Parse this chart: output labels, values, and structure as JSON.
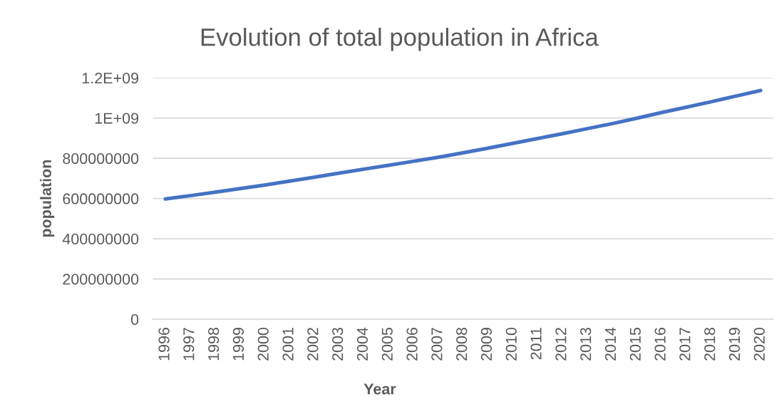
{
  "chart_data": {
    "type": "line",
    "title": "Evolution of total population in Africa",
    "xlabel": "Year",
    "ylabel": "population",
    "categories": [
      "1996",
      "1997",
      "1998",
      "1999",
      "2000",
      "2001",
      "2002",
      "2003",
      "2004",
      "2005",
      "2006",
      "2007",
      "2008",
      "2009",
      "2010",
      "2011",
      "2012",
      "2013",
      "2014",
      "2015",
      "2016",
      "2017",
      "2018",
      "2019",
      "2020"
    ],
    "series": [
      {
        "color": "#4472c4",
        "values": [
          598000000,
          614000000,
          631000000,
          649000000,
          667000000,
          686000000,
          706000000,
          726000000,
          746000000,
          765000000,
          785000000,
          805000000,
          827000000,
          850000000,
          874000000,
          898000000,
          922000000,
          947000000,
          972000000,
          999000000,
          1027000000,
          1054000000,
          1081000000,
          1109000000,
          1137000000
        ]
      }
    ],
    "ylim": [
      0,
      1200000000
    ],
    "yticks": [
      0,
      200000000,
      400000000,
      600000000,
      800000000,
      {
        "value": 1000000000,
        "label": "1E+09"
      },
      {
        "value": 1200000000,
        "label": "1.2E+09"
      }
    ],
    "grid": "y",
    "marker": "none",
    "line_style": "solid"
  }
}
